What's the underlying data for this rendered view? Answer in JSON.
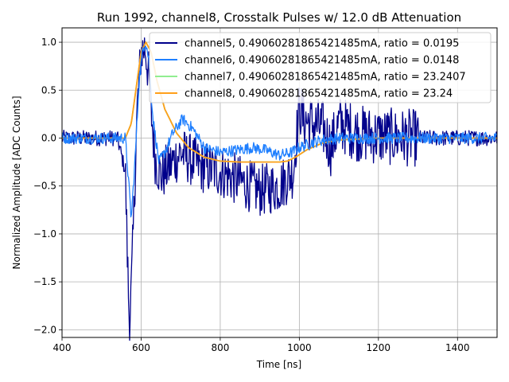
{
  "chart_data": {
    "type": "line",
    "title": "Run 1992, channel8, Crosstalk Pulses w/ 12.0 dB Attenuation",
    "xlabel": "Time [ns]",
    "ylabel": "Normalized Amplitude [ADC Counts]",
    "xlim": [
      400,
      1500
    ],
    "ylim": [
      -2.08,
      1.15
    ],
    "xticks": [
      400,
      600,
      800,
      1000,
      1200,
      1400
    ],
    "yticks": [
      -2.0,
      -1.5,
      -1.0,
      -0.5,
      0.0,
      0.5,
      1.0
    ],
    "xtick_labels": [
      "400",
      "600",
      "800",
      "1000",
      "1200",
      "1400"
    ],
    "ytick_labels": [
      "−2.0",
      "−1.5",
      "−1.0",
      "−0.5",
      "0.0",
      "0.5",
      "1.0"
    ],
    "grid": true,
    "legend_position": "top-right",
    "series": [
      {
        "name": "channel5, 0.49060281865421485mA, ratio = 0.0195",
        "color": "#00008b",
        "noisy": true,
        "x": [
          400,
          540,
          560,
          565,
          570,
          575,
          580,
          590,
          600,
          610,
          618,
          625,
          635,
          650,
          700,
          750,
          800,
          850,
          900,
          950,
          985,
          1000,
          1010,
          1030,
          1060,
          1080,
          1100,
          1150,
          1200,
          1300,
          1400,
          1500
        ],
        "y": [
          0.0,
          0.0,
          -0.35,
          -1.2,
          -1.9,
          -1.6,
          -1.0,
          0.3,
          0.9,
          0.95,
          0.7,
          0.3,
          -0.2,
          -0.4,
          -0.15,
          -0.3,
          -0.35,
          -0.45,
          -0.55,
          -0.5,
          -0.35,
          0.35,
          0.2,
          0.15,
          0.1,
          -0.1,
          0.15,
          0.05,
          0.02,
          0.0,
          0.0,
          0.0
        ]
      },
      {
        "name": "channel6, 0.49060281865421485mA, ratio = 0.0148",
        "color": "#1e7fff",
        "noisy": true,
        "x": [
          400,
          560,
          570,
          575,
          585,
          595,
          605,
          612,
          620,
          630,
          645,
          660,
          680,
          705,
          730,
          760,
          800,
          850,
          880,
          910,
          950,
          980,
          1000,
          1030,
          1060,
          1100,
          1200,
          1500
        ],
        "y": [
          0.0,
          0.0,
          -0.55,
          -0.85,
          -0.2,
          0.6,
          0.95,
          1.0,
          0.8,
          0.2,
          -0.25,
          -0.15,
          0.05,
          0.2,
          0.1,
          -0.1,
          -0.15,
          -0.12,
          -0.1,
          -0.12,
          -0.18,
          -0.15,
          -0.1,
          -0.05,
          -0.02,
          0.0,
          0.0,
          0.0
        ]
      },
      {
        "name": "channel7, 0.49060281865421485mA, ratio = 23.2407",
        "color": "#90ee90",
        "noisy": false,
        "x": [
          400,
          560,
          575,
          590,
          600,
          612,
          625,
          640,
          660,
          690,
          720,
          760,
          800,
          850,
          900,
          950,
          970,
          990,
          1020,
          1060,
          1100,
          1150,
          1200,
          1300,
          1500
        ],
        "y": [
          0.0,
          0.0,
          0.15,
          0.6,
          0.9,
          1.0,
          0.9,
          0.6,
          0.3,
          0.05,
          -0.1,
          -0.2,
          -0.24,
          -0.25,
          -0.25,
          -0.25,
          -0.24,
          -0.2,
          -0.12,
          -0.05,
          -0.02,
          -0.01,
          0.0,
          0.0,
          0.0
        ]
      },
      {
        "name": "channel8, 0.49060281865421485mA, ratio = 23.24",
        "color": "#ff9f1a",
        "noisy": false,
        "x": [
          400,
          560,
          575,
          590,
          600,
          612,
          625,
          640,
          660,
          690,
          720,
          760,
          800,
          850,
          900,
          950,
          970,
          990,
          1020,
          1060,
          1100,
          1150,
          1200,
          1300,
          1500
        ],
        "y": [
          0.0,
          0.0,
          0.15,
          0.6,
          0.9,
          1.0,
          0.9,
          0.6,
          0.3,
          0.05,
          -0.1,
          -0.2,
          -0.24,
          -0.25,
          -0.25,
          -0.25,
          -0.24,
          -0.2,
          -0.12,
          -0.05,
          -0.02,
          -0.01,
          0.0,
          0.0,
          0.0
        ]
      }
    ]
  }
}
